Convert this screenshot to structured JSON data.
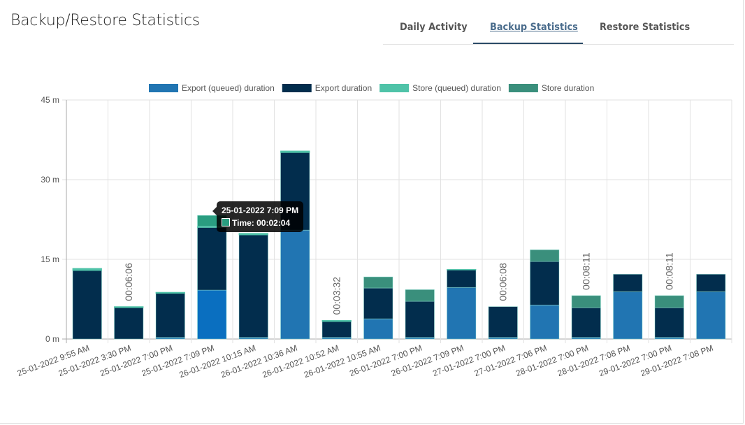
{
  "header": {
    "title": "Backup/Restore Statistics"
  },
  "tabs": [
    {
      "label": "Daily Activity",
      "active": false
    },
    {
      "label": "Backup Statistics",
      "active": true
    },
    {
      "label": "Restore Statistics",
      "active": false
    }
  ],
  "tooltip": {
    "title": "25-01-2022 7:09 PM",
    "line": "Time: 00:02:04"
  },
  "chart_data": {
    "type": "bar",
    "stacked": true,
    "ylim": [
      0,
      45
    ],
    "yticks": [
      0,
      15,
      30,
      45
    ],
    "ytick_labels": [
      "0 m",
      "15 m",
      "30 m",
      "45 m"
    ],
    "grid": true,
    "legend": "top",
    "categories": [
      "25-01-2022 9:55 AM",
      "25-01-2022 3:30 PM",
      "25-01-2022 7:00 PM",
      "25-01-2022 7:09 PM",
      "26-01-2022 10:15 AM",
      "26-01-2022 10:36 AM",
      "26-01-2022 10:52 AM",
      "26-01-2022 10:55 AM",
      "26-01-2022 7:00 PM",
      "26-01-2022 7:09 PM",
      "27-01-2022 7:00 PM",
      "27-01-2022 7:06 PM",
      "28-01-2022 7:00 PM",
      "28-01-2022 7:08 PM",
      "29-01-2022 7:00 PM",
      "29-01-2022 7:08 PM"
    ],
    "series": [
      {
        "name": "Export (queued) duration",
        "color": "#2175b2",
        "values": [
          0,
          0,
          0.3,
          9.2,
          0.3,
          20.5,
          0.3,
          3.8,
          0.3,
          9.7,
          0.3,
          6.4,
          0.3,
          8.9,
          0.3,
          8.9
        ]
      },
      {
        "name": "Export duration",
        "color": "#022d4d",
        "values": [
          12.9,
          5.9,
          8.3,
          11.8,
          19.3,
          14.6,
          3.0,
          5.8,
          6.8,
          3.3,
          5.8,
          8.2,
          5.6,
          3.3,
          5.6,
          3.3
        ]
      },
      {
        "name": "Store (queued) duration",
        "color": "#4fc3a8",
        "values": [
          0.4,
          0.2,
          0.2,
          0.2,
          0.3,
          0.3,
          0.2,
          0,
          0,
          0.1,
          0,
          0,
          0,
          0,
          0,
          0
        ]
      },
      {
        "name": "Store duration",
        "color": "#3a8f7c",
        "values": [
          0,
          0,
          0,
          2.07,
          0,
          0,
          0,
          2.1,
          2.2,
          0,
          0,
          2.2,
          2.28,
          0,
          2.28,
          0
        ]
      }
    ],
    "highlight": {
      "category_index": 3,
      "color": "#0a6fc0",
      "store_color": "#2a9d80"
    },
    "data_labels": [
      "",
      "00:06:06",
      "",
      "",
      "",
      "",
      "00:03:32",
      "",
      "",
      "",
      "00:06:08",
      "",
      "00:08:11",
      "",
      "00:08:11",
      ""
    ]
  }
}
